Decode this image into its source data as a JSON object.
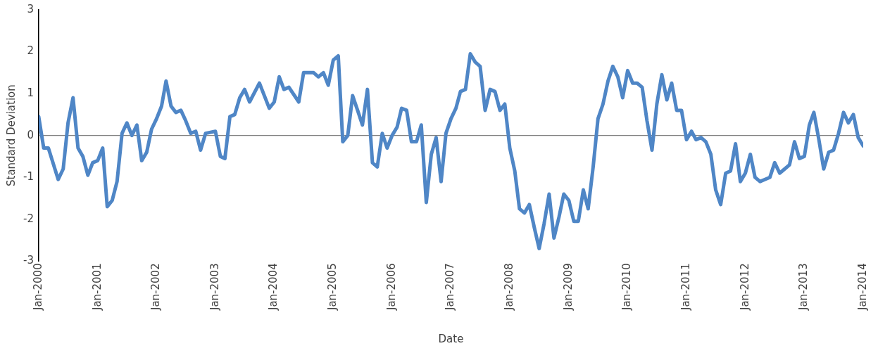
{
  "chart_data": {
    "type": "line",
    "xlabel": "Date",
    "ylabel": "Standard Deviation",
    "xlim": [
      "2000-01",
      "2014-01"
    ],
    "ylim": [
      -3,
      3
    ],
    "yticks": [
      -3,
      -2,
      -1,
      0,
      1,
      2,
      3
    ],
    "xticks": [
      {
        "value": "2000-01",
        "label": "Jan-2000"
      },
      {
        "value": "2001-01",
        "label": "Jan-2001"
      },
      {
        "value": "2002-01",
        "label": "Jan-2002"
      },
      {
        "value": "2003-01",
        "label": "Jan-2003"
      },
      {
        "value": "2004-01",
        "label": "Jan-2004"
      },
      {
        "value": "2005-01",
        "label": "Jan-2005"
      },
      {
        "value": "2006-01",
        "label": "Jan-2006"
      },
      {
        "value": "2007-01",
        "label": "Jan-2007"
      },
      {
        "value": "2008-01",
        "label": "Jan-2008"
      },
      {
        "value": "2009-01",
        "label": "Jan-2009"
      },
      {
        "value": "2010-01",
        "label": "Jan-2010"
      },
      {
        "value": "2011-01",
        "label": "Jan-2011"
      },
      {
        "value": "2012-01",
        "label": "Jan-2012"
      },
      {
        "value": "2013-01",
        "label": "Jan-2013"
      },
      {
        "value": "2014-01",
        "label": "Jan-2014"
      }
    ],
    "grid": false,
    "legend": false,
    "marker": "none",
    "line_style": "solid",
    "ref_lines": [
      {
        "axis": "y",
        "value": 0,
        "label": null,
        "color": "#808080"
      }
    ],
    "series": [
      {
        "color": "#4f86c6",
        "x": [
          "2000-01",
          "2000-02",
          "2000-03",
          "2000-05",
          "2000-06",
          "2000-07",
          "2000-08",
          "2000-09",
          "2000-10",
          "2000-11",
          "2000-12",
          "2001-01",
          "2001-02",
          "2001-03",
          "2001-04",
          "2001-05",
          "2001-06",
          "2001-07",
          "2001-08",
          "2001-09",
          "2001-10",
          "2001-11",
          "2001-12",
          "2002-01",
          "2002-02",
          "2002-03",
          "2002-04",
          "2002-05",
          "2002-06",
          "2002-07",
          "2002-08",
          "2002-09",
          "2002-10",
          "2002-11",
          "2003-01",
          "2003-02",
          "2003-03",
          "2003-04",
          "2003-05",
          "2003-06",
          "2003-07",
          "2003-08",
          "2003-10",
          "2003-12",
          "2004-01",
          "2004-02",
          "2004-03",
          "2004-04",
          "2004-06",
          "2004-07",
          "2004-09",
          "2004-10",
          "2004-11",
          "2004-12",
          "2005-01",
          "2005-02",
          "2005-03",
          "2005-04",
          "2005-05",
          "2005-06",
          "2005-07",
          "2005-08",
          "2005-09",
          "2005-10",
          "2005-11",
          "2005-12",
          "2006-01",
          "2006-02",
          "2006-03",
          "2006-04",
          "2006-05",
          "2006-06",
          "2006-07",
          "2006-08",
          "2006-09",
          "2006-10",
          "2006-11",
          "2006-12",
          "2007-01",
          "2007-02",
          "2007-03",
          "2007-04",
          "2007-05",
          "2007-06",
          "2007-07",
          "2007-08",
          "2007-09",
          "2007-10",
          "2007-11",
          "2007-12",
          "2008-01",
          "2008-02",
          "2008-03",
          "2008-04",
          "2008-05",
          "2008-06",
          "2008-07",
          "2008-08",
          "2008-09",
          "2008-10",
          "2008-11",
          "2008-12",
          "2009-01",
          "2009-02",
          "2009-03",
          "2009-04",
          "2009-05",
          "2009-06",
          "2009-07",
          "2009-08",
          "2009-09",
          "2009-10",
          "2009-11",
          "2009-12",
          "2010-01",
          "2010-02",
          "2010-03",
          "2010-04",
          "2010-05",
          "2010-06",
          "2010-07",
          "2010-08",
          "2010-09",
          "2010-10",
          "2010-11",
          "2010-12",
          "2011-01",
          "2011-02",
          "2011-03",
          "2011-04",
          "2011-05",
          "2011-06",
          "2011-07",
          "2011-08",
          "2011-09",
          "2011-10",
          "2011-11",
          "2011-12",
          "2012-01",
          "2012-02",
          "2012-03",
          "2012-04",
          "2012-05",
          "2012-06",
          "2012-07",
          "2012-08",
          "2012-09",
          "2012-10",
          "2012-11",
          "2012-12",
          "2013-01",
          "2013-02",
          "2013-03",
          "2013-04",
          "2013-05",
          "2013-06",
          "2013-07",
          "2013-08",
          "2013-09",
          "2013-10",
          "2013-11",
          "2013-12",
          "2014-01"
        ],
        "values": [
          0.45,
          -0.3,
          -0.3,
          -1.05,
          -0.8,
          0.3,
          0.9,
          -0.3,
          -0.5,
          -0.95,
          -0.65,
          -0.6,
          -0.3,
          -1.7,
          -1.55,
          -1.1,
          0.05,
          0.3,
          0,
          0.25,
          -0.6,
          -0.4,
          0.15,
          0.4,
          0.7,
          1.3,
          0.7,
          0.55,
          0.6,
          0.35,
          0.05,
          0.1,
          -0.35,
          0.05,
          0.1,
          -0.5,
          -0.55,
          0.45,
          0.5,
          0.9,
          1.1,
          0.8,
          1.25,
          0.65,
          0.8,
          1.4,
          1.1,
          1.15,
          0.8,
          1.5,
          1.5,
          1.4,
          1.5,
          1.2,
          1.8,
          1.9,
          -0.15,
          0,
          0.95,
          0.6,
          0.25,
          1.1,
          -0.65,
          -0.75,
          0.05,
          -0.3,
          0,
          0.2,
          0.65,
          0.6,
          -0.15,
          -0.15,
          0.25,
          -1.6,
          -0.45,
          -0.05,
          -1.1,
          0.05,
          0.4,
          0.65,
          1.05,
          1.1,
          1.95,
          1.75,
          1.65,
          0.6,
          1.1,
          1.05,
          0.6,
          0.75,
          -0.3,
          -0.85,
          -1.75,
          -1.85,
          -1.65,
          -2.2,
          -2.7,
          -2.1,
          -1.4,
          -2.45,
          -1.95,
          -1.4,
          -1.55,
          -2.05,
          -2.05,
          -1.3,
          -1.75,
          -0.75,
          0.4,
          0.75,
          1.3,
          1.65,
          1.4,
          0.9,
          1.55,
          1.25,
          1.25,
          1.15,
          0.35,
          -0.35,
          0.75,
          1.45,
          0.85,
          1.25,
          0.6,
          0.6,
          -0.1,
          0.1,
          -0.1,
          -0.05,
          -0.15,
          -0.45,
          -1.3,
          -1.65,
          -0.9,
          -0.85,
          -0.2,
          -1.1,
          -0.9,
          -0.45,
          -1.0,
          -1.1,
          -1.05,
          -1.0,
          -0.65,
          -0.9,
          -0.8,
          -0.7,
          -0.15,
          -0.55,
          -0.5,
          0.25,
          0.55,
          -0.1,
          -0.8,
          -0.4,
          -0.35,
          0.05,
          0.55,
          0.3,
          0.5,
          -0.05,
          -0.25
        ]
      }
    ]
  }
}
